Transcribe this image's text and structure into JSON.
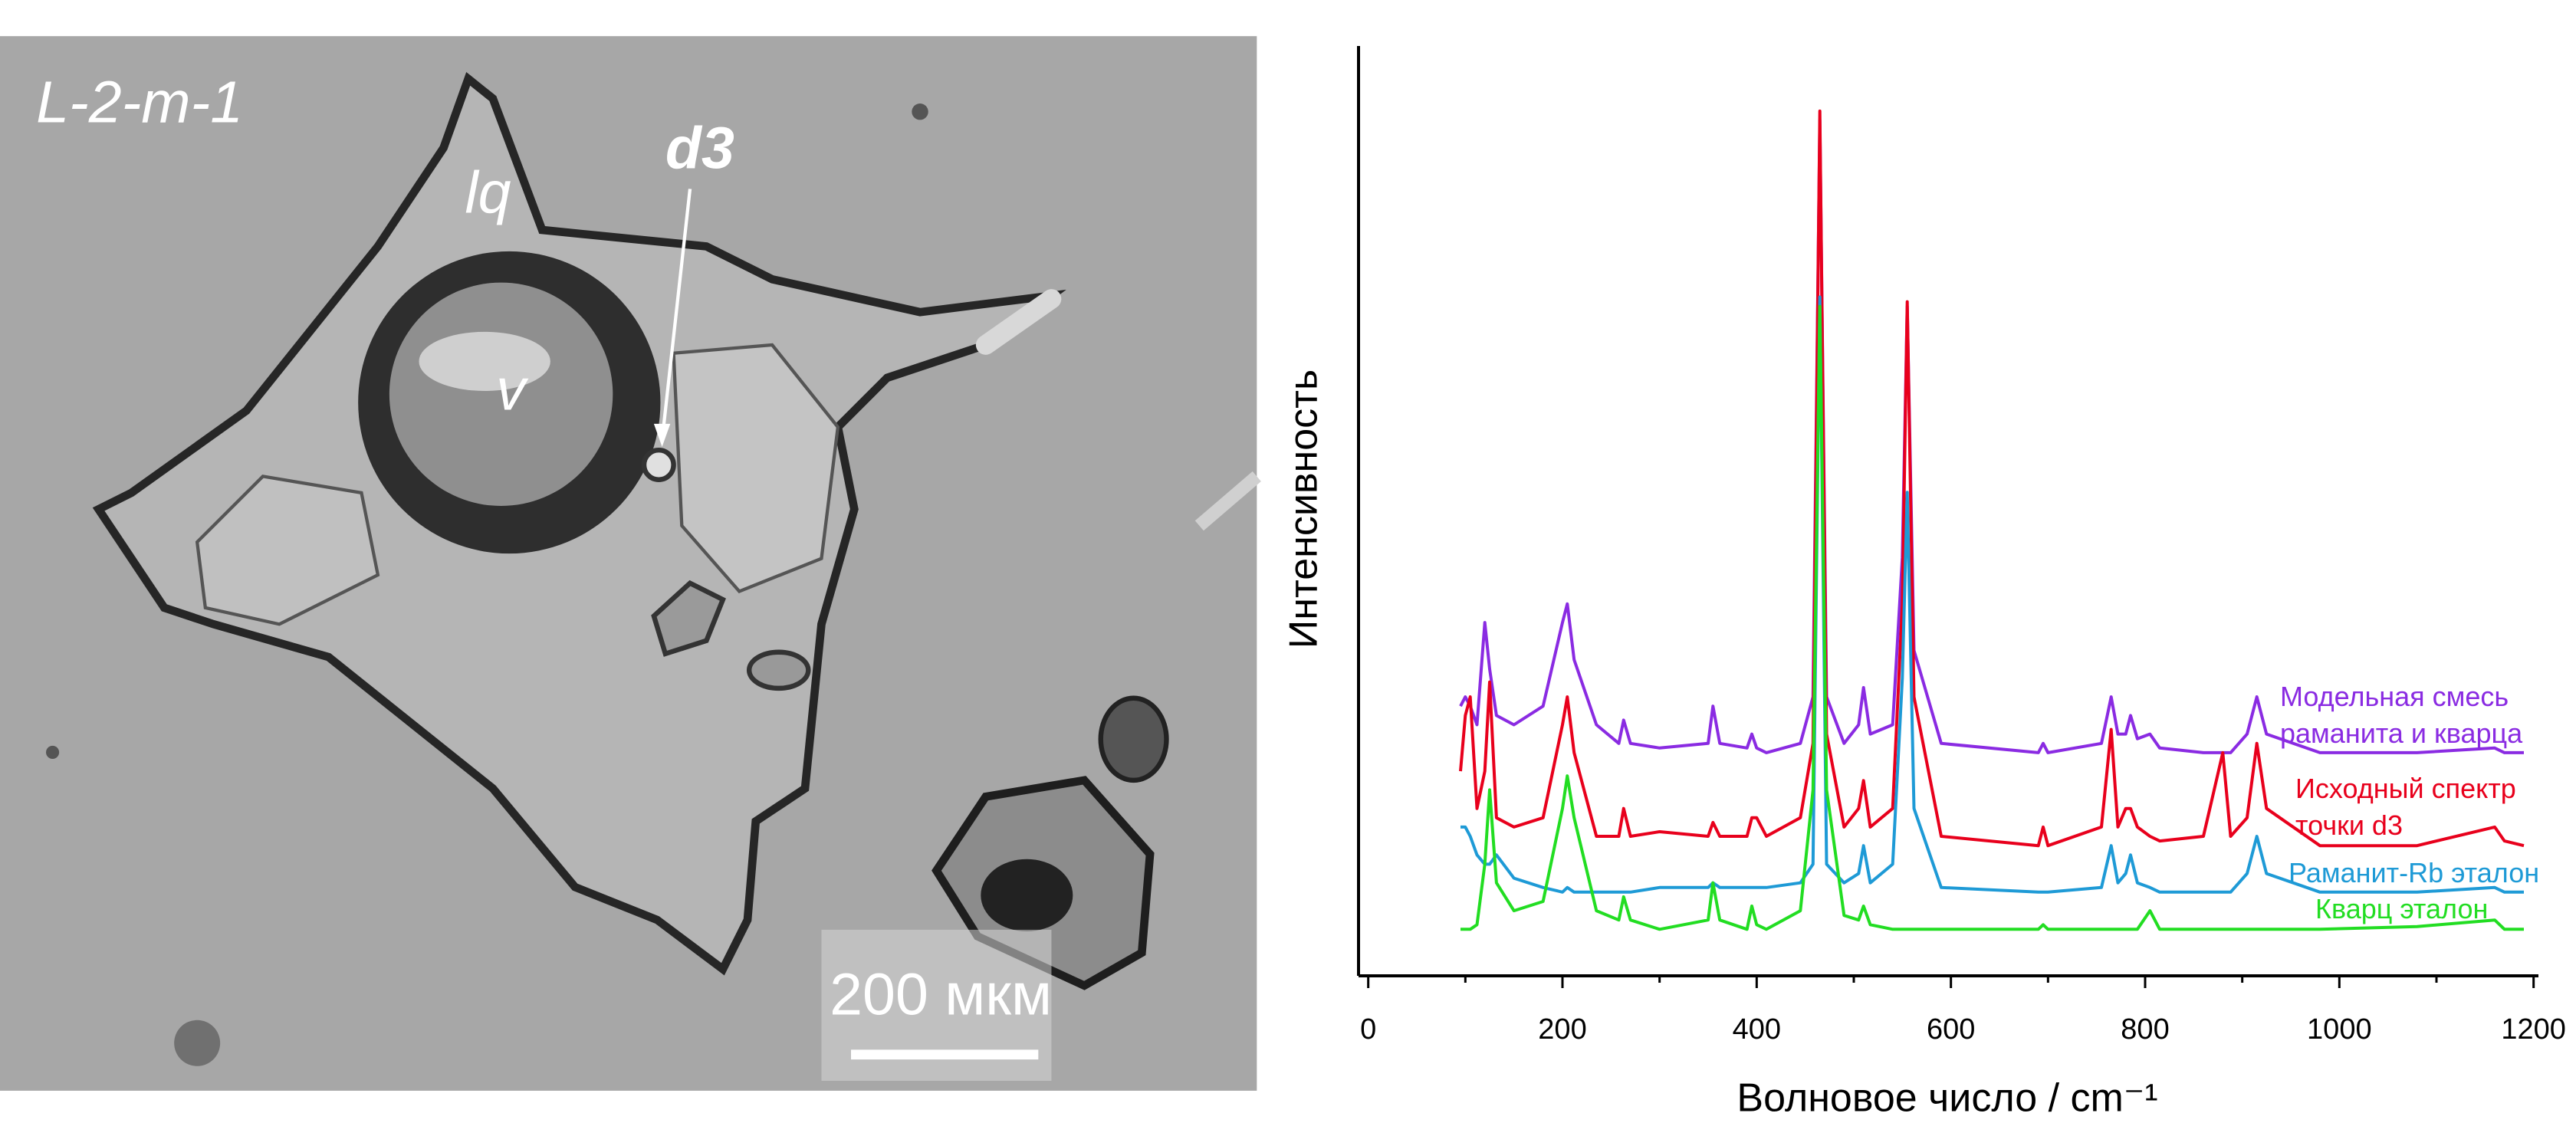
{
  "photo": {
    "sample": "L-2-m-1",
    "labels": [
      "lq",
      "d3",
      "v"
    ],
    "scale_bar": "200 мкм"
  },
  "chart_data": {
    "type": "line",
    "x_label": "Волновое число / cm⁻¹",
    "y_label": "Интенсивность",
    "xlim": [
      -10,
      1205
    ],
    "ylim": [
      0,
      100
    ],
    "xticks": [
      0,
      200,
      400,
      600,
      800,
      1000,
      1200
    ],
    "xminorticks": [
      100,
      300,
      500,
      700,
      900,
      1100
    ],
    "x": [
      95,
      100,
      105,
      112,
      120,
      125,
      132,
      150,
      180,
      200,
      205,
      212,
      235,
      258,
      263,
      270,
      300,
      350,
      355,
      362,
      390,
      395,
      400,
      410,
      445,
      458,
      465,
      472,
      490,
      505,
      510,
      517,
      540,
      550,
      555,
      562,
      590,
      690,
      695,
      700,
      755,
      765,
      772,
      780,
      785,
      792,
      805,
      815,
      860,
      880,
      888,
      905,
      915,
      925,
      980,
      1080,
      1160,
      1170,
      1190
    ],
    "series": [
      {
        "name": "Модельная смесь раманита и кварца",
        "color": "#8a2be2",
        "values": [
          29,
          30,
          29,
          27,
          38,
          33,
          28,
          27,
          29,
          38,
          40,
          34,
          27,
          25,
          27.5,
          25,
          24.5,
          25,
          29,
          25,
          24.5,
          26,
          24.5,
          24,
          25,
          30,
          92,
          30,
          25,
          27,
          31,
          26,
          27,
          45,
          72,
          35,
          25,
          24,
          25,
          24,
          25,
          30,
          26,
          26,
          28,
          25.5,
          26,
          24.5,
          24,
          24,
          24,
          26,
          30,
          26,
          24,
          24,
          24.5,
          24,
          24
        ]
      },
      {
        "name": "Исходный спектр точки d3",
        "color": "#e8001c",
        "values": [
          22,
          28,
          30,
          18,
          22,
          31.6,
          17,
          16,
          17,
          27,
          30,
          24,
          15,
          15,
          18,
          15,
          15.5,
          15,
          16.5,
          15,
          15,
          17,
          17,
          15,
          17,
          25,
          93,
          26,
          16,
          18,
          21,
          16,
          18,
          40,
          72.5,
          30,
          15,
          14,
          16,
          14,
          16,
          26.5,
          16,
          18,
          18,
          16,
          15,
          14.5,
          15,
          24,
          15,
          17,
          25,
          18,
          14,
          14,
          16,
          14.5,
          14
        ]
      },
      {
        "name": "Раманит-Rb эталон",
        "color": "#1e9ad6",
        "values": [
          16,
          16,
          15,
          13,
          12,
          12,
          13,
          10.5,
          9.5,
          9,
          9.5,
          9,
          9,
          9,
          9,
          9,
          9.5,
          9.5,
          10,
          9.5,
          9.5,
          9.5,
          9.5,
          9.5,
          10,
          12,
          73,
          12,
          10,
          11,
          14,
          10,
          12,
          32,
          52,
          18,
          9.5,
          9,
          9,
          9,
          9.5,
          14,
          10,
          11,
          13,
          10,
          9.5,
          9,
          9,
          9,
          9,
          11,
          15,
          11,
          9,
          9,
          9.5,
          9,
          9
        ]
      },
      {
        "name": "Кварц эталон",
        "color": "#22dd22",
        "values": [
          5,
          5,
          5,
          5.5,
          12,
          20,
          10,
          7,
          8,
          18,
          21.5,
          17,
          7,
          6,
          8.5,
          6,
          5,
          6,
          10,
          6,
          5,
          7.5,
          5.5,
          5,
          7,
          20,
          72,
          20,
          6.5,
          6,
          7.5,
          5.5,
          5,
          5,
          5,
          5,
          5,
          5,
          5.5,
          5,
          5,
          5,
          5,
          5,
          5,
          5,
          7,
          5,
          5,
          5,
          5,
          5,
          5,
          5,
          5,
          5.3,
          6,
          5,
          5
        ]
      }
    ]
  }
}
